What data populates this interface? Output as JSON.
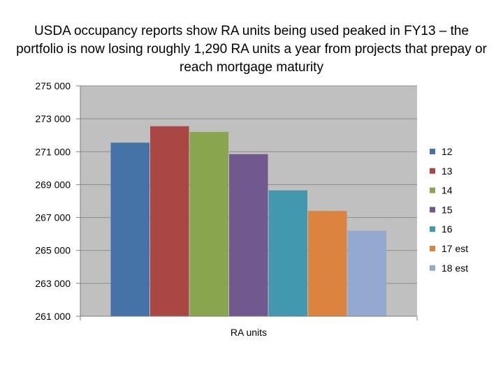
{
  "chart_data": {
    "type": "bar",
    "title": "USDA occupancy reports show RA units being used peaked in FY13 – the portfolio is now losing roughly 1,290 RA units a year from projects that prepay or reach mortgage maturity",
    "categories": [
      "RA units"
    ],
    "series": [
      {
        "name": "12",
        "values": [
          271550
        ],
        "color": "#4572A7"
      },
      {
        "name": "13",
        "values": [
          272550
        ],
        "color": "#AA4643"
      },
      {
        "name": "14",
        "values": [
          272200
        ],
        "color": "#89A54E"
      },
      {
        "name": "15",
        "values": [
          270850
        ],
        "color": "#71588F"
      },
      {
        "name": "16",
        "values": [
          268650
        ],
        "color": "#4198AF"
      },
      {
        "name": "17 est",
        "values": [
          267400
        ],
        "color": "#DB843D"
      },
      {
        "name": "18 est",
        "values": [
          266200
        ],
        "color": "#93A9CF"
      }
    ],
    "yticks": [
      "275 000",
      "273 000",
      "271 000",
      "269 000",
      "267 000",
      "265 000",
      "263 000",
      "261 000"
    ],
    "ylim": [
      261000,
      275000
    ],
    "ytick_step": 2000,
    "grid": true,
    "legend": "right",
    "plot_background": "#C0C0C0"
  }
}
